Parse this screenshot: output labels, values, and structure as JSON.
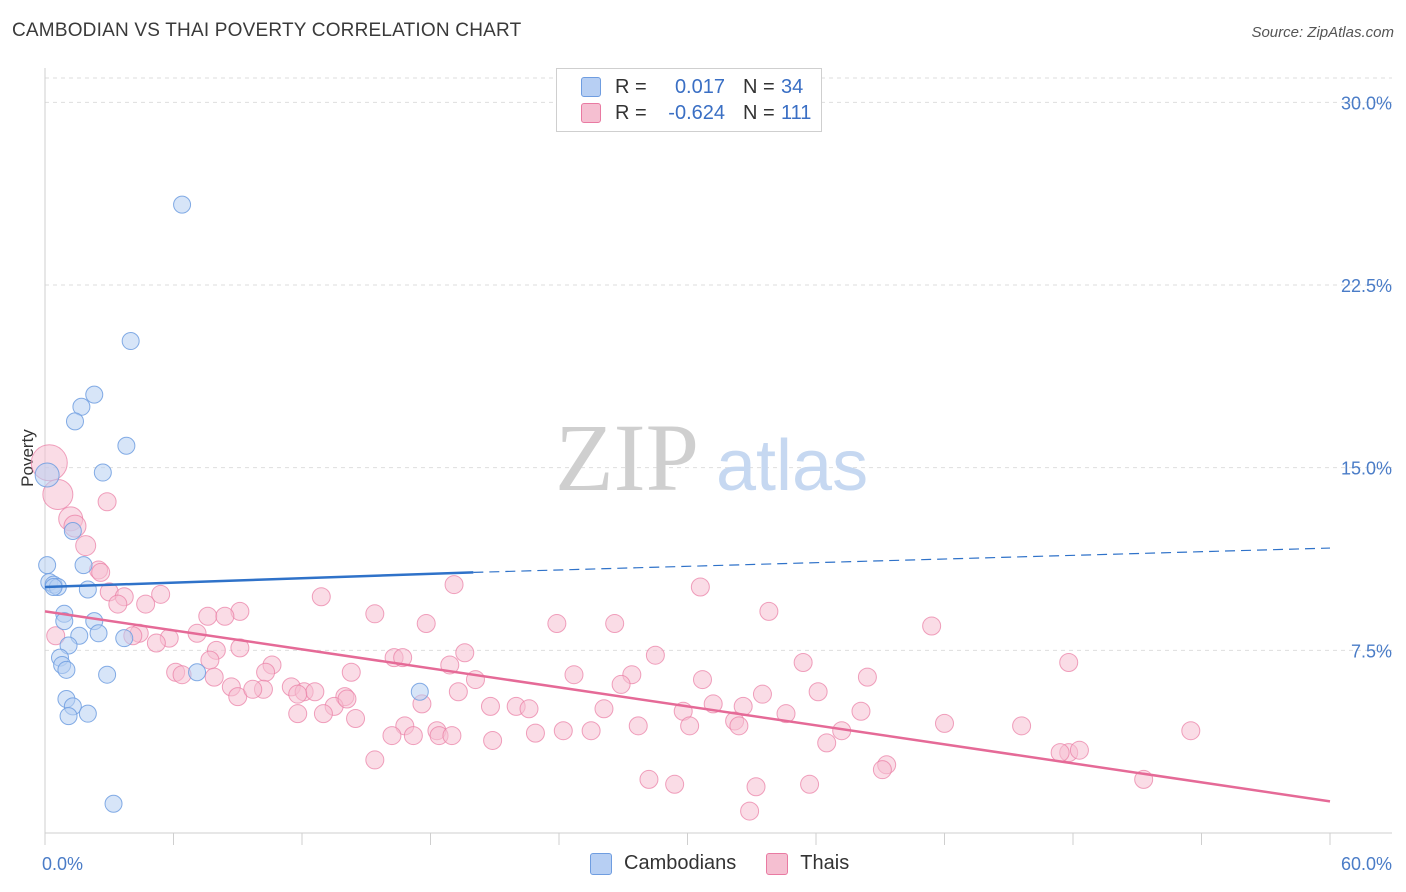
{
  "title": "CAMBODIAN VS THAI POVERTY CORRELATION CHART",
  "source": "Source: ZipAtlas.com",
  "watermark": {
    "zip": "ZIP",
    "atlas": "atlas"
  },
  "colors": {
    "cambodians": "#6f9de0",
    "cambodians_fill": "#b7cff3",
    "thais": "#e97aa2",
    "thais_fill": "#f5bfd1",
    "trend_blue": "#2f72c9",
    "trend_pink": "#e56a97",
    "tick_text": "#4a7cc7"
  },
  "legend": {
    "rows": [
      {
        "r_label": "R =",
        "r_value": "0.017",
        "n_label": "N =",
        "n_value": "34"
      },
      {
        "r_label": "R =",
        "r_value": "-0.624",
        "n_label": "N =",
        "n_value": "111"
      }
    ]
  },
  "bottom_legend": {
    "cambodians": "Cambodians",
    "thais": "Thais"
  },
  "chart_data": {
    "type": "scatter",
    "title": "CAMBODIAN VS THAI POVERTY CORRELATION CHART",
    "xlabel": "",
    "ylabel": "Poverty",
    "xlim": [
      0,
      60
    ],
    "ylim": [
      0,
      31
    ],
    "x_tick_labels": [
      "0.0%",
      "60.0%"
    ],
    "y_ticks": [
      7.5,
      15.0,
      22.5,
      30.0
    ],
    "y_tick_labels": [
      "7.5%",
      "15.0%",
      "22.5%",
      "30.0%"
    ],
    "grid": true,
    "legend_position": "top-center",
    "series": [
      {
        "name": "Cambodians",
        "points": [
          [
            6.4,
            25.8
          ],
          [
            4.0,
            20.2
          ],
          [
            2.3,
            18.0
          ],
          [
            1.7,
            17.5
          ],
          [
            1.4,
            16.9
          ],
          [
            3.8,
            15.9
          ],
          [
            2.7,
            14.8
          ],
          [
            0.1,
            14.7
          ],
          [
            1.3,
            12.4
          ],
          [
            0.1,
            11.0
          ],
          [
            1.8,
            11.0
          ],
          [
            0.2,
            10.3
          ],
          [
            0.4,
            10.2
          ],
          [
            0.6,
            10.1
          ],
          [
            2.0,
            10.0
          ],
          [
            0.9,
            9.0
          ],
          [
            0.9,
            8.7
          ],
          [
            2.3,
            8.7
          ],
          [
            2.5,
            8.2
          ],
          [
            3.7,
            8.0
          ],
          [
            1.6,
            8.1
          ],
          [
            1.1,
            7.7
          ],
          [
            0.7,
            7.2
          ],
          [
            0.8,
            6.9
          ],
          [
            1.0,
            6.7
          ],
          [
            7.1,
            6.6
          ],
          [
            2.9,
            6.5
          ],
          [
            17.5,
            5.8
          ],
          [
            1.0,
            5.5
          ],
          [
            1.3,
            5.2
          ],
          [
            2.0,
            4.9
          ],
          [
            1.1,
            4.8
          ],
          [
            3.2,
            1.2
          ],
          [
            0.4,
            10.1
          ]
        ]
      },
      {
        "name": "Thais",
        "points": [
          [
            0.2,
            15.2
          ],
          [
            0.6,
            13.9
          ],
          [
            2.9,
            13.6
          ],
          [
            1.2,
            12.9
          ],
          [
            1.4,
            12.6
          ],
          [
            1.9,
            11.8
          ],
          [
            2.5,
            10.8
          ],
          [
            2.6,
            10.7
          ],
          [
            19.1,
            10.2
          ],
          [
            30.6,
            10.1
          ],
          [
            3.0,
            9.9
          ],
          [
            5.4,
            9.8
          ],
          [
            3.7,
            9.7
          ],
          [
            12.9,
            9.7
          ],
          [
            4.7,
            9.4
          ],
          [
            3.4,
            9.4
          ],
          [
            9.1,
            9.1
          ],
          [
            15.4,
            9.0
          ],
          [
            33.8,
            9.1
          ],
          [
            7.6,
            8.9
          ],
          [
            8.4,
            8.9
          ],
          [
            17.8,
            8.6
          ],
          [
            23.9,
            8.6
          ],
          [
            26.6,
            8.6
          ],
          [
            41.4,
            8.5
          ],
          [
            4.4,
            8.2
          ],
          [
            7.1,
            8.2
          ],
          [
            5.8,
            8.0
          ],
          [
            5.2,
            7.8
          ],
          [
            9.1,
            7.6
          ],
          [
            8.0,
            7.5
          ],
          [
            16.3,
            7.2
          ],
          [
            16.7,
            7.2
          ],
          [
            19.6,
            7.4
          ],
          [
            28.5,
            7.3
          ],
          [
            7.7,
            7.1
          ],
          [
            10.6,
            6.9
          ],
          [
            18.9,
            6.9
          ],
          [
            35.4,
            7.0
          ],
          [
            47.8,
            7.0
          ],
          [
            6.1,
            6.6
          ],
          [
            6.4,
            6.5
          ],
          [
            10.3,
            6.6
          ],
          [
            14.3,
            6.6
          ],
          [
            24.7,
            6.5
          ],
          [
            27.4,
            6.5
          ],
          [
            30.7,
            6.3
          ],
          [
            38.4,
            6.4
          ],
          [
            20.1,
            6.3
          ],
          [
            26.9,
            6.1
          ],
          [
            7.9,
            6.4
          ],
          [
            8.7,
            6.0
          ],
          [
            10.2,
            5.9
          ],
          [
            11.5,
            6.0
          ],
          [
            12.1,
            5.8
          ],
          [
            14.0,
            5.6
          ],
          [
            19.3,
            5.8
          ],
          [
            33.5,
            5.7
          ],
          [
            36.1,
            5.8
          ],
          [
            12.6,
            5.8
          ],
          [
            9.0,
            5.6
          ],
          [
            11.8,
            5.7
          ],
          [
            13.5,
            5.2
          ],
          [
            14.1,
            5.5
          ],
          [
            17.6,
            5.3
          ],
          [
            20.8,
            5.2
          ],
          [
            22.0,
            5.2
          ],
          [
            22.6,
            5.1
          ],
          [
            26.1,
            5.1
          ],
          [
            29.8,
            5.0
          ],
          [
            31.2,
            5.3
          ],
          [
            32.6,
            5.2
          ],
          [
            34.6,
            4.9
          ],
          [
            38.1,
            5.0
          ],
          [
            11.8,
            4.9
          ],
          [
            13.0,
            4.9
          ],
          [
            14.5,
            4.7
          ],
          [
            16.8,
            4.4
          ],
          [
            16.2,
            4.0
          ],
          [
            18.3,
            4.2
          ],
          [
            18.4,
            4.0
          ],
          [
            22.9,
            4.1
          ],
          [
            24.2,
            4.2
          ],
          [
            25.5,
            4.2
          ],
          [
            27.7,
            4.4
          ],
          [
            30.1,
            4.4
          ],
          [
            32.2,
            4.6
          ],
          [
            32.4,
            4.4
          ],
          [
            37.2,
            4.2
          ],
          [
            42.0,
            4.5
          ],
          [
            45.6,
            4.4
          ],
          [
            19.0,
            4.0
          ],
          [
            20.9,
            3.8
          ],
          [
            17.2,
            4.0
          ],
          [
            36.5,
            3.7
          ],
          [
            47.8,
            3.3
          ],
          [
            47.4,
            3.3
          ],
          [
            48.3,
            3.4
          ],
          [
            53.5,
            4.2
          ],
          [
            15.4,
            3.0
          ],
          [
            39.3,
            2.8
          ],
          [
            39.1,
            2.6
          ],
          [
            28.2,
            2.2
          ],
          [
            29.4,
            2.0
          ],
          [
            33.2,
            1.9
          ],
          [
            35.7,
            2.0
          ],
          [
            51.3,
            2.2
          ],
          [
            32.9,
            0.9
          ],
          [
            0.5,
            8.1
          ],
          [
            4.1,
            8.1
          ],
          [
            9.7,
            5.9
          ]
        ]
      }
    ],
    "trend_lines": [
      {
        "series": "Cambodians",
        "solid": [
          [
            0,
            10.1
          ],
          [
            20,
            10.7
          ]
        ],
        "dashed": [
          [
            20,
            10.7
          ],
          [
            60,
            11.7
          ]
        ]
      },
      {
        "series": "Thais",
        "solid": [
          [
            0,
            9.1
          ],
          [
            60,
            1.3
          ]
        ]
      }
    ]
  }
}
